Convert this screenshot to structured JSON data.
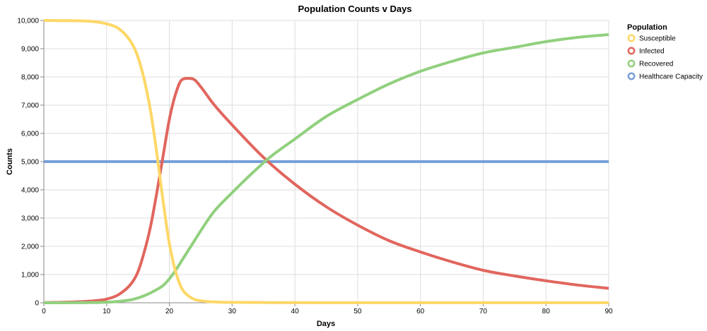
{
  "chart_data": {
    "type": "line",
    "title": "Population Counts v Days",
    "xlabel": "Days",
    "ylabel": "Counts",
    "xlim": [
      0,
      90
    ],
    "ylim": [
      0,
      10000
    ],
    "x_ticks": [
      0,
      10,
      20,
      30,
      40,
      50,
      60,
      70,
      80,
      90
    ],
    "y_ticks": [
      0,
      1000,
      2000,
      3000,
      4000,
      5000,
      6000,
      7000,
      8000,
      9000,
      10000
    ],
    "x_tick_labels": [
      "0",
      "10",
      "20",
      "30",
      "40",
      "50",
      "60",
      "70",
      "80",
      "90"
    ],
    "y_tick_labels": [
      "0",
      "1,000",
      "2,000",
      "3,000",
      "4,000",
      "5,000",
      "6,000",
      "7,000",
      "8,000",
      "9,000",
      "10,000"
    ],
    "grid": true,
    "legend": {
      "title": "Population",
      "position": "right"
    },
    "series": [
      {
        "name": "Susceptible",
        "color": "#fed766",
        "x": [
          0,
          5,
          8,
          10,
          12,
          14,
          15,
          16,
          17,
          18,
          19,
          20,
          21,
          22,
          23,
          24,
          25,
          27,
          30,
          35,
          40,
          50,
          60,
          70,
          80,
          90
        ],
        "y": [
          10000,
          9990,
          9960,
          9880,
          9700,
          9200,
          8700,
          7900,
          6800,
          5300,
          3600,
          2100,
          1100,
          500,
          250,
          120,
          70,
          30,
          15,
          8,
          5,
          3,
          2,
          2,
          2,
          2
        ]
      },
      {
        "name": "Infected",
        "color": "#e1665e",
        "x": [
          0,
          5,
          8,
          10,
          12,
          14,
          15,
          16,
          17,
          18,
          19,
          20,
          21,
          22,
          23,
          24,
          25,
          27,
          30,
          35,
          40,
          45,
          50,
          55,
          60,
          65,
          70,
          75,
          80,
          85,
          90
        ],
        "y": [
          5,
          30,
          70,
          130,
          300,
          700,
          1100,
          1800,
          2700,
          3900,
          5200,
          6500,
          7400,
          7900,
          7950,
          7900,
          7650,
          7050,
          6300,
          5150,
          4200,
          3400,
          2750,
          2200,
          1800,
          1450,
          1150,
          950,
          780,
          630,
          510
        ]
      },
      {
        "name": "Recovered",
        "color": "#91d07e",
        "x": [
          0,
          5,
          10,
          12,
          14,
          15,
          16,
          17,
          18,
          19,
          20,
          21,
          22,
          23,
          24,
          25,
          27,
          30,
          33,
          36,
          40,
          45,
          50,
          55,
          60,
          65,
          70,
          75,
          80,
          85,
          90
        ],
        "y": [
          0,
          3,
          20,
          50,
          110,
          170,
          250,
          350,
          470,
          610,
          850,
          1150,
          1500,
          1850,
          2200,
          2550,
          3200,
          3900,
          4550,
          5150,
          5800,
          6600,
          7200,
          7750,
          8200,
          8550,
          8850,
          9050,
          9250,
          9400,
          9500
        ]
      },
      {
        "name": "Healthcare Capacity",
        "color": "#78a0d8",
        "x": [
          0,
          90
        ],
        "y": [
          5000,
          5000
        ]
      }
    ]
  }
}
